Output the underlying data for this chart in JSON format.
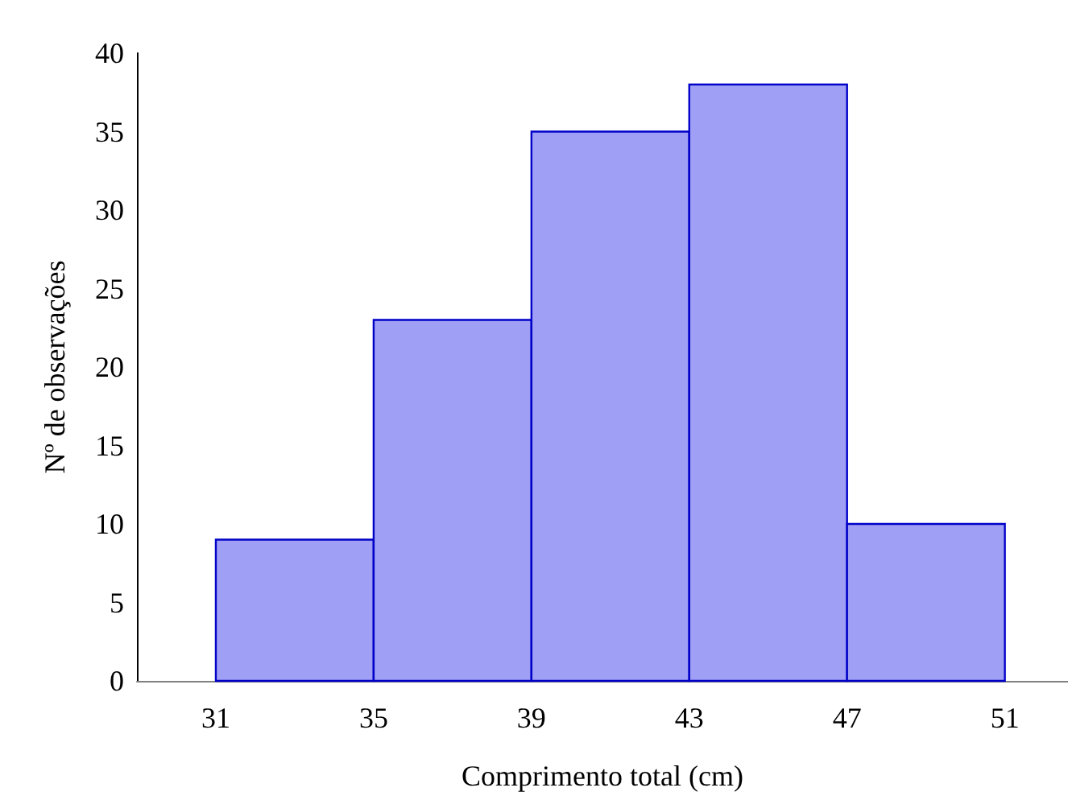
{
  "chart_data": {
    "type": "histogram",
    "xlabel": "Comprimento total (cm)",
    "ylabel": "Nº de observações",
    "bins": [
      31,
      35,
      39,
      43,
      47,
      51
    ],
    "values": [
      9,
      23,
      35,
      38,
      10
    ],
    "color": "#9f9ff5",
    "xlim": [
      29,
      52.6
    ],
    "xticks": [
      31,
      35,
      39,
      43,
      47,
      51
    ],
    "ylim": [
      0,
      40
    ],
    "yticks": [
      0,
      5,
      10,
      15,
      20,
      25,
      30,
      35,
      40
    ],
    "grid": false
  }
}
